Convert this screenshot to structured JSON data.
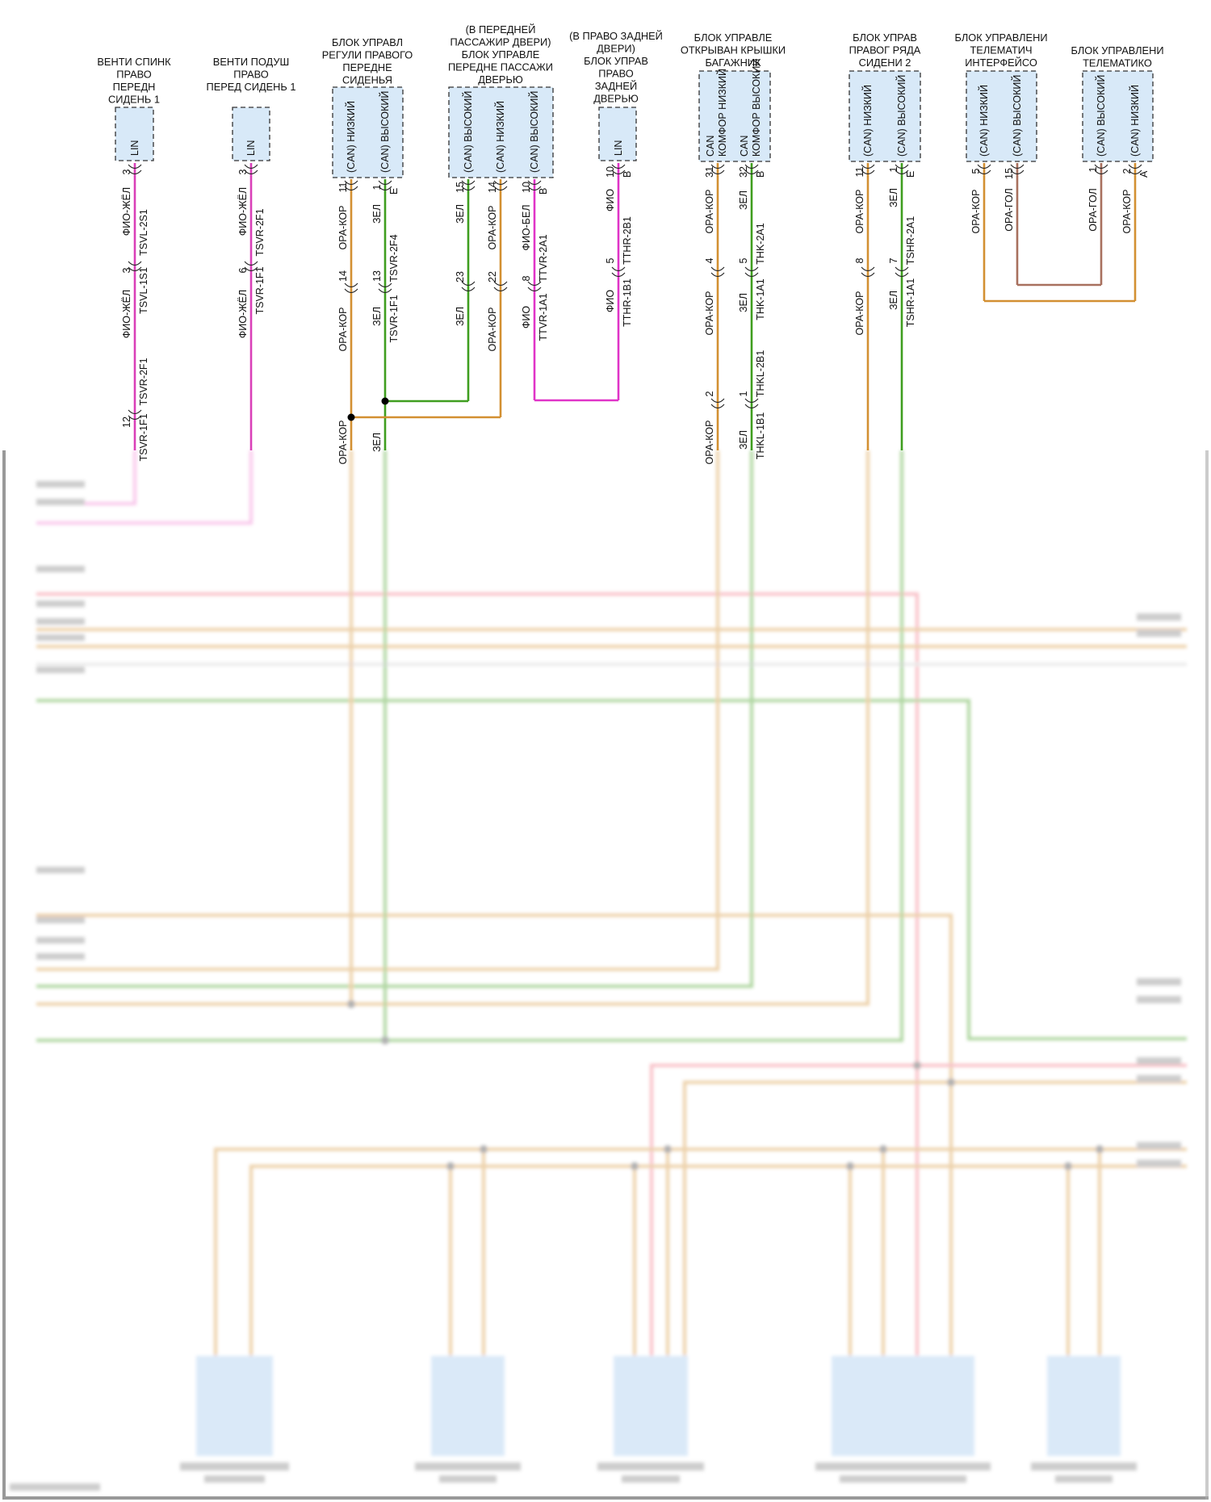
{
  "colors": {
    "ОРА-КОР": "#d39032",
    "ЗЕЛ": "#3f9e1f",
    "ФИО": "#e034c8",
    "ОРА-ГОЛ": "#a8705e",
    "red_bus": "#f06a7a",
    "module_fill": "#d8e9f8",
    "module_border": "#333333"
  },
  "modules": [
    {
      "title": [
        "ВЕНТИ СПИНК",
        "ПРАВО",
        "ПЕРЕДН",
        "СИДЕНЬ 1"
      ],
      "pins": [
        [
          "LIN"
        ]
      ],
      "connector_letter": ""
    },
    {
      "title": [
        "ВЕНТИ ПОДУШ",
        "ПРАВО",
        "ПЕРЕД СИДЕНЬ 1"
      ],
      "pins": [
        [
          "LIN"
        ]
      ],
      "connector_letter": ""
    },
    {
      "title": [
        "БЛОК УПРАВЛ",
        "РЕГУЛИ ПРАВОГО",
        "ПЕРЕДНЕ",
        "СИДЕНЬЯ"
      ],
      "pins": [
        [
          "(CAN) НИЗКИЙ"
        ],
        [
          "(CAN) ВЫСОКИЙ"
        ]
      ],
      "connector_letter": "E"
    },
    {
      "title": [
        "(В ПЕРЕДНЕЙ",
        "ПАССАЖИР ДВЕРИ)",
        "БЛОК УПРАВЛЕ",
        "ПЕРЕДНЕ ПАССАЖИ",
        "ДВЕРЬЮ"
      ],
      "pins": [
        [
          "(CAN) ВЫСОКИЙ"
        ],
        [
          "(CAN) НИЗКИЙ"
        ],
        [
          "(CAN) ВЫСОКИЙ"
        ]
      ],
      "connector_letter": "B"
    },
    {
      "title": [
        "(В ПРАВО ЗАДНЕЙ",
        "ДВЕРИ)",
        "БЛОК УПРАВ",
        "ПРАВО",
        "ЗАДНЕЙ",
        "ДВЕРЬЮ"
      ],
      "pins": [
        [
          "LIN"
        ]
      ],
      "connector_letter": "B"
    },
    {
      "title": [
        "БЛОК УПРАВЛЕ",
        "ОТКРЫВАН КРЫШКИ",
        "БАГАЖНИК"
      ],
      "pins": [
        [
          "CAN",
          "КОМФОР НИЗКИЙ"
        ],
        [
          "CAN",
          "КОМФОР ВЫСОКИЙ"
        ]
      ],
      "connector_letter": "B"
    },
    {
      "title": [
        "БЛОК УПРАВ",
        "ПРАВОГ РЯДА",
        "СИДЕНИ 2"
      ],
      "pins": [
        [
          "(CAN) НИЗКИЙ"
        ],
        [
          "(CAN) ВЫСОКИЙ"
        ]
      ],
      "connector_letter": "E"
    },
    {
      "title": [
        "БЛОК УПРАВЛЕНИ",
        "ТЕЛЕМАТИЧ",
        "ИНТЕРФЕЙСО"
      ],
      "pins": [
        [
          "(CAN) НИЗКИЙ"
        ],
        [
          "(CAN) ВЫСОКИЙ"
        ]
      ],
      "connector_letter": ""
    },
    {
      "title": [
        "БЛОК УПРАВЛЕНИ",
        "ТЕЛЕМАТИКО"
      ],
      "pins": [
        [
          "(CAN) ВЫСОКИЙ"
        ],
        [
          "(CAN) НИЗКИЙ"
        ]
      ],
      "connector_letter": "A"
    }
  ],
  "wires": [
    {
      "color": "#d93fb8",
      "labels": [
        "3",
        "ФИО-ЖЁЛ",
        "TSVL-2S1",
        "3",
        "TSVL-1S1",
        "ФИО-ЖЁЛ",
        "TSVR-2F1",
        "12",
        "TSVR-1F1"
      ]
    },
    {
      "color": "#d93fb8",
      "labels": [
        "3",
        "ФИО-ЖЁЛ",
        "TSVR-2F1",
        "6",
        "TSVR-1F1",
        "ФИО-ЖЁЛ"
      ]
    },
    {
      "color": "#d39032",
      "labels": [
        "11",
        "ОРА-КОР",
        "14",
        "ОРА-КОР",
        "ОРА-КОР"
      ]
    },
    {
      "color": "#3f9e1f",
      "labels": [
        "1",
        "ЗЕЛ",
        "TSVR-2F4",
        "13",
        "ЗЕЛ",
        "TSVR-1F1",
        "ЗЕЛ"
      ]
    },
    {
      "color": "#3f9e1f",
      "labels": [
        "15",
        "ЗЕЛ",
        "23",
        "ЗЕЛ"
      ]
    },
    {
      "color": "#d39032",
      "labels": [
        "14",
        "ОРА-КОР",
        "22",
        "ОРА-КОР"
      ]
    },
    {
      "color": "#e034c8",
      "labels": [
        "10",
        "ФИО-БЕЛ",
        "TTVR-2A1",
        "8",
        "ФИО",
        "TTVR-1A1"
      ]
    },
    {
      "color": "#e034c8",
      "labels": [
        "10",
        "ФИО",
        "TTHR-2B1",
        "5",
        "ФИО",
        "TTHR-1B1"
      ]
    },
    {
      "color": "#d39032",
      "labels": [
        "31",
        "ОРА-КОР",
        "4",
        "ОРА-КОР",
        "2",
        "ОРА-КОР"
      ]
    },
    {
      "color": "#3f9e1f",
      "labels": [
        "32",
        "ЗЕЛ",
        "THK-2A1",
        "5",
        "ЗЕЛ",
        "THK-1A1",
        "THKL-2B1",
        "1",
        "ЗЕЛ",
        "THKL-1B1"
      ]
    },
    {
      "color": "#d39032",
      "labels": [
        "11",
        "ОРА-КОР",
        "8",
        "ОРА-КОР"
      ]
    },
    {
      "color": "#3f9e1f",
      "labels": [
        "1",
        "ЗЕЛ",
        "TSHR-2A1",
        "7",
        "ЗЕЛ",
        "TSHR-1A1"
      ]
    },
    {
      "color": "#d39032",
      "labels": [
        "5",
        "ОРА-КОР"
      ]
    },
    {
      "color": "#a8705e",
      "labels": [
        "15",
        "ОРА-ГОЛ"
      ]
    },
    {
      "color": "#a8705e",
      "labels": [
        "1",
        "ОРА-ГОЛ"
      ]
    },
    {
      "color": "#d39032",
      "labels": [
        "2",
        "ОРА-КОР"
      ]
    }
  ]
}
